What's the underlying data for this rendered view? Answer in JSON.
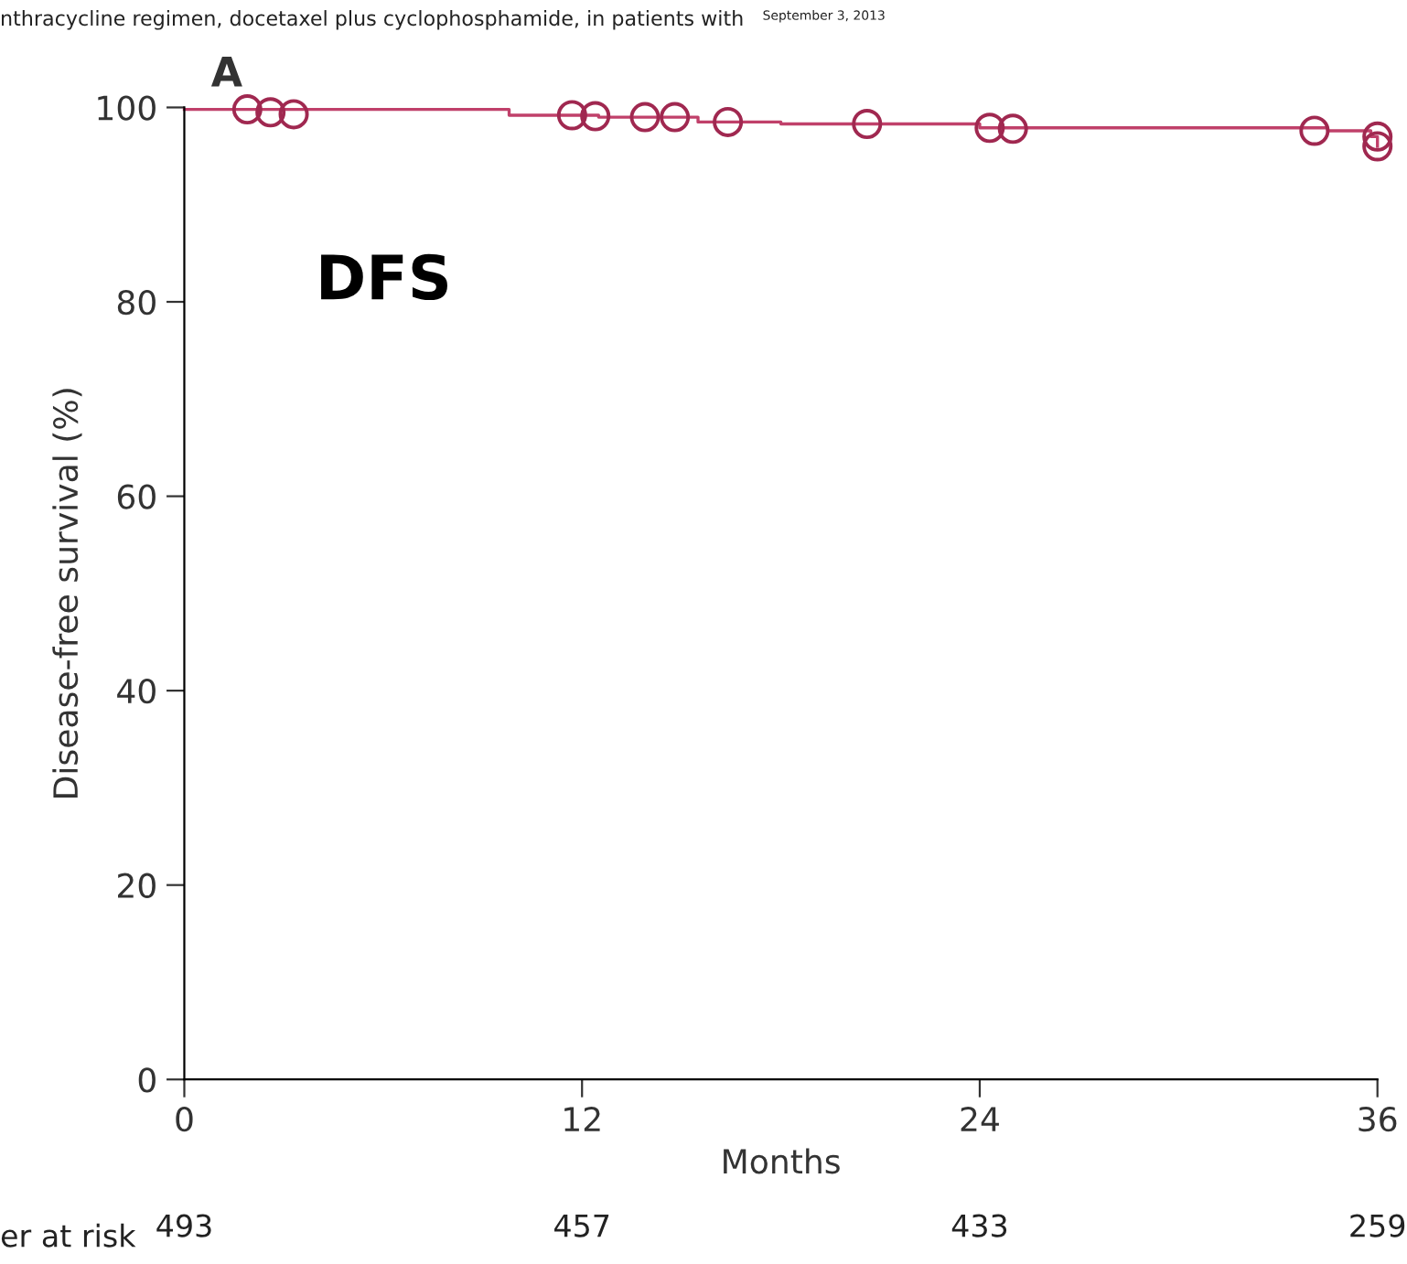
{
  "chart_data": {
    "type": "step",
    "title": "A",
    "xlabel": "Months",
    "ylabel": "Disease-free survival (%)",
    "xlim": [
      0,
      36
    ],
    "ylim": [
      0,
      100
    ],
    "xticks": [
      0,
      12,
      24,
      36
    ],
    "yticks": [
      0,
      20,
      40,
      60,
      80,
      100
    ],
    "grid": false,
    "legend": false,
    "series": [
      {
        "color": "#c0406a",
        "marker": "none",
        "x": [
          0,
          9.8,
          12.5,
          15.5,
          18,
          24,
          34.5,
          35.8,
          36
        ],
        "values": [
          99.8,
          99.2,
          99.0,
          98.5,
          98.3,
          97.9,
          97.6,
          97.0,
          96.0
        ]
      },
      {
        "type": "scatter",
        "color": "#a02850",
        "marker": "circle",
        "x": [
          1.9,
          2.6,
          3.3,
          11.7,
          12.4,
          13.9,
          14.8,
          16.4,
          20.6,
          24.3,
          25.0,
          34.1,
          36.0,
          36.0
        ],
        "values": [
          99.8,
          99.5,
          99.3,
          99.2,
          99.1,
          99.0,
          99.0,
          98.5,
          98.3,
          97.9,
          97.8,
          97.6,
          97.0,
          96.0
        ]
      }
    ],
    "annotations": [
      "nthracycline regimen, docetaxel plus cyclophosphamide, in patients with",
      "September 3, 2013",
      "DFS",
      "er at risk",
      "493",
      "457",
      "433",
      "259"
    ]
  }
}
